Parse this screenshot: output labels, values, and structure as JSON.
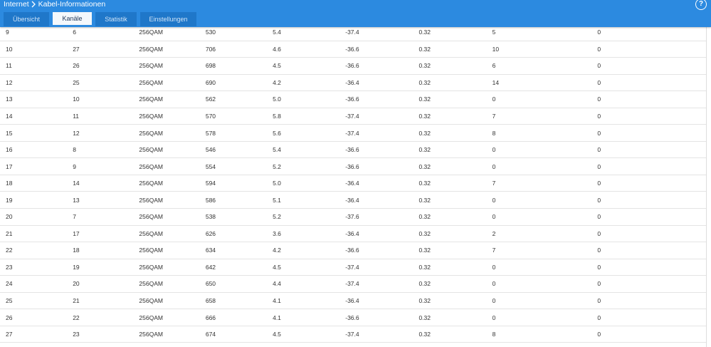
{
  "header": {
    "breadcrumb": [
      "Internet",
      "Kabel-Informationen"
    ],
    "help": "?"
  },
  "tabs": [
    "Übersicht",
    "Kanäle",
    "Statistik",
    "Einstellungen"
  ],
  "table": {
    "rows": [
      [
        "9",
        "6",
        "256QAM",
        "530",
        "5.4",
        "-37.4",
        "0.32",
        "5",
        "0"
      ],
      [
        "10",
        "27",
        "256QAM",
        "706",
        "4.6",
        "-36.6",
        "0.32",
        "10",
        "0"
      ],
      [
        "11",
        "26",
        "256QAM",
        "698",
        "4.5",
        "-36.6",
        "0.32",
        "6",
        "0"
      ],
      [
        "12",
        "25",
        "256QAM",
        "690",
        "4.2",
        "-36.4",
        "0.32",
        "14",
        "0"
      ],
      [
        "13",
        "10",
        "256QAM",
        "562",
        "5.0",
        "-36.6",
        "0.32",
        "0",
        "0"
      ],
      [
        "14",
        "11",
        "256QAM",
        "570",
        "5.8",
        "-37.4",
        "0.32",
        "7",
        "0"
      ],
      [
        "15",
        "12",
        "256QAM",
        "578",
        "5.6",
        "-37.4",
        "0.32",
        "8",
        "0"
      ],
      [
        "16",
        "8",
        "256QAM",
        "546",
        "5.4",
        "-36.6",
        "0.32",
        "0",
        "0"
      ],
      [
        "17",
        "9",
        "256QAM",
        "554",
        "5.2",
        "-36.6",
        "0.32",
        "0",
        "0"
      ],
      [
        "18",
        "14",
        "256QAM",
        "594",
        "5.0",
        "-36.4",
        "0.32",
        "7",
        "0"
      ],
      [
        "19",
        "13",
        "256QAM",
        "586",
        "5.1",
        "-36.4",
        "0.32",
        "0",
        "0"
      ],
      [
        "20",
        "7",
        "256QAM",
        "538",
        "5.2",
        "-37.6",
        "0.32",
        "0",
        "0"
      ],
      [
        "21",
        "17",
        "256QAM",
        "626",
        "3.6",
        "-36.4",
        "0.32",
        "2",
        "0"
      ],
      [
        "22",
        "18",
        "256QAM",
        "634",
        "4.2",
        "-36.6",
        "0.32",
        "7",
        "0"
      ],
      [
        "23",
        "19",
        "256QAM",
        "642",
        "4.5",
        "-37.4",
        "0.32",
        "0",
        "0"
      ],
      [
        "24",
        "20",
        "256QAM",
        "650",
        "4.4",
        "-37.4",
        "0.32",
        "0",
        "0"
      ],
      [
        "25",
        "21",
        "256QAM",
        "658",
        "4.1",
        "-36.4",
        "0.32",
        "0",
        "0"
      ],
      [
        "26",
        "22",
        "256QAM",
        "666",
        "4.1",
        "-36.6",
        "0.32",
        "0",
        "0"
      ],
      [
        "27",
        "23",
        "256QAM",
        "674",
        "4.5",
        "-37.4",
        "0.32",
        "8",
        "0"
      ]
    ]
  }
}
